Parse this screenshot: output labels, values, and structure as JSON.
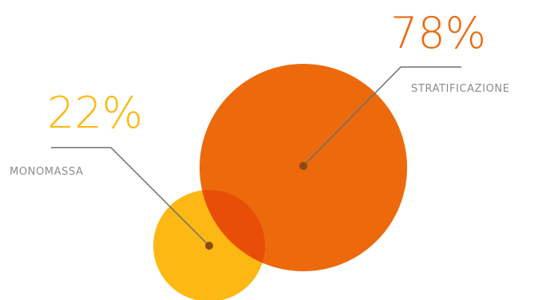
{
  "chart_data": {
    "type": "bubble",
    "series": [
      {
        "name": "MONOMASSA",
        "value": 22,
        "value_label": "22%",
        "color": "#FDB813"
      },
      {
        "name": "STRATIFICAZIONE",
        "value": 78,
        "value_label": "78%",
        "color": "#EC6A0C"
      }
    ],
    "overlap_color": "#E94E07",
    "leader_color": "#6D6E71",
    "dot_color": "#8A4A14",
    "label_color": "#8C8C8C",
    "legend": "none",
    "grid": false
  }
}
